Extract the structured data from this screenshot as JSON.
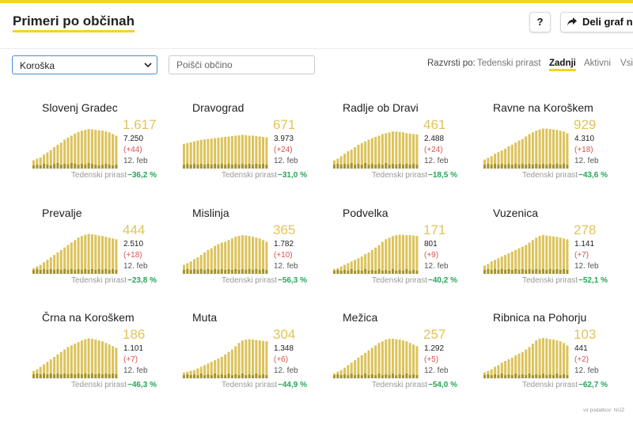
{
  "header": {
    "title": "Primeri po občinah",
    "help_label": "?",
    "share_label": "Deli graf na"
  },
  "filters": {
    "region_selected": "Koroška",
    "search_placeholder": "Poišči občino",
    "sort_label": "Razvrsti po:",
    "sort_options": [
      "Tedenski prirast",
      "Zadnji",
      "Aktivni",
      "Vsi"
    ],
    "sort_active": "Zadnji"
  },
  "growth_label": "Tedenski prirast",
  "colors": {
    "accent": "#f5d422",
    "bar_light": "#dcc35a",
    "bar_dark": "#a39330",
    "growth_text": "#26a65b",
    "delta_text": "#d9534f"
  },
  "municipalities": [
    {
      "name": "Slovenj Gradec",
      "active": "1.617",
      "total": "7.250",
      "delta": "(+44)",
      "date": "12. feb",
      "growth": "−36,2 %",
      "series": [
        20,
        24,
        27,
        34,
        39,
        45,
        52,
        58,
        63,
        70,
        75,
        80,
        85,
        89,
        92,
        94,
        96,
        95,
        94,
        93,
        92,
        90,
        88,
        84,
        80
      ],
      "dark": [
        4,
        5,
        4,
        6,
        5,
        4,
        6,
        7,
        5,
        6,
        5,
        7,
        6,
        5,
        6,
        5,
        7,
        6,
        5,
        4,
        5,
        6,
        5,
        4,
        5
      ]
    },
    {
      "name": "Dravograd",
      "active": "671",
      "total": "3.973",
      "delta": "(+24)",
      "date": "12. feb",
      "growth": "−31,0 %",
      "series": [
        60,
        62,
        64,
        66,
        68,
        70,
        71,
        72,
        73,
        74,
        75,
        76,
        77,
        78,
        79,
        80,
        81,
        82,
        81,
        80,
        80,
        79,
        78,
        77,
        76
      ],
      "dark": [
        5,
        6,
        5,
        6,
        5,
        6,
        5,
        6,
        5,
        6,
        5,
        6,
        5,
        6,
        5,
        6,
        5,
        6,
        5,
        6,
        5,
        6,
        5,
        6,
        5
      ]
    },
    {
      "name": "Radlje ob Dravi",
      "active": "461",
      "total": "2.488",
      "delta": "(+24)",
      "date": "12. feb",
      "growth": "−18,5 %",
      "series": [
        20,
        24,
        30,
        36,
        42,
        46,
        52,
        58,
        62,
        66,
        70,
        74,
        77,
        80,
        84,
        86,
        88,
        90,
        90,
        89,
        88,
        86,
        85,
        84,
        83
      ],
      "dark": [
        5,
        6,
        5,
        6,
        5,
        7,
        5,
        6,
        5,
        7,
        5,
        6,
        5,
        6,
        5,
        7,
        5,
        6,
        5,
        6,
        5,
        6,
        5,
        6,
        5
      ]
    },
    {
      "name": "Ravne na Koroškem",
      "active": "929",
      "total": "4.310",
      "delta": "(+18)",
      "date": "12. feb",
      "growth": "−43,6 %",
      "series": [
        22,
        26,
        30,
        36,
        40,
        44,
        48,
        54,
        58,
        63,
        68,
        72,
        78,
        84,
        88,
        92,
        95,
        97,
        97,
        96,
        95,
        94,
        92,
        90,
        86
      ],
      "dark": [
        5,
        6,
        5,
        6,
        5,
        6,
        5,
        6,
        5,
        6,
        5,
        6,
        5,
        6,
        5,
        6,
        5,
        6,
        5,
        6,
        5,
        6,
        5,
        6,
        5
      ]
    },
    {
      "name": "Prevalje",
      "active": "444",
      "total": "2.510",
      "delta": "(+18)",
      "date": "12. feb",
      "growth": "−23,8 %",
      "series": [
        14,
        18,
        22,
        28,
        34,
        40,
        46,
        52,
        58,
        64,
        70,
        76,
        82,
        88,
        92,
        95,
        97,
        96,
        95,
        93,
        92,
        90,
        88,
        86,
        84
      ],
      "dark": [
        5,
        6,
        5,
        6,
        5,
        6,
        5,
        6,
        5,
        6,
        5,
        6,
        5,
        6,
        5,
        6,
        5,
        6,
        5,
        6,
        5,
        6,
        5,
        6,
        5
      ]
    },
    {
      "name": "Mislinja",
      "active": "365",
      "total": "1.782",
      "delta": "(+10)",
      "date": "12. feb",
      "growth": "−56,3 %",
      "series": [
        22,
        26,
        30,
        36,
        40,
        46,
        52,
        58,
        62,
        68,
        72,
        76,
        78,
        82,
        86,
        90,
        92,
        94,
        93,
        92,
        90,
        88,
        86,
        82,
        78
      ],
      "dark": [
        5,
        6,
        5,
        6,
        5,
        6,
        5,
        6,
        5,
        6,
        5,
        6,
        5,
        6,
        5,
        6,
        5,
        6,
        5,
        6,
        5,
        6,
        5,
        6,
        5
      ]
    },
    {
      "name": "Podvelka",
      "active": "171",
      "total": "801",
      "delta": "(+9)",
      "date": "12. feb",
      "growth": "−40,2 %",
      "series": [
        12,
        14,
        18,
        22,
        26,
        30,
        34,
        38,
        42,
        48,
        52,
        58,
        64,
        70,
        78,
        84,
        88,
        92,
        94,
        95,
        95,
        94,
        94,
        93,
        92
      ],
      "dark": [
        4,
        5,
        4,
        5,
        4,
        6,
        4,
        5,
        4,
        6,
        4,
        5,
        4,
        6,
        4,
        5,
        4,
        6,
        4,
        5,
        4,
        6,
        4,
        5,
        4
      ]
    },
    {
      "name": "Vuzenica",
      "active": "278",
      "total": "1.141",
      "delta": "(+7)",
      "date": "12. feb",
      "growth": "−52,1 %",
      "series": [
        20,
        24,
        30,
        34,
        38,
        42,
        46,
        50,
        54,
        58,
        62,
        66,
        70,
        76,
        82,
        88,
        92,
        94,
        93,
        92,
        91,
        90,
        88,
        86,
        84
      ],
      "dark": [
        5,
        6,
        5,
        6,
        5,
        6,
        5,
        6,
        5,
        6,
        5,
        6,
        5,
        6,
        5,
        6,
        5,
        6,
        5,
        6,
        5,
        6,
        5,
        6,
        5
      ]
    },
    {
      "name": "Črna na Koroškem",
      "active": "186",
      "total": "1.101",
      "delta": "(+7)",
      "date": "12. feb",
      "growth": "−46,3 %",
      "series": [
        18,
        22,
        28,
        34,
        40,
        46,
        52,
        58,
        64,
        70,
        76,
        80,
        84,
        88,
        92,
        95,
        97,
        96,
        94,
        92,
        90,
        86,
        82,
        78,
        74
      ],
      "dark": [
        5,
        6,
        5,
        6,
        5,
        6,
        5,
        6,
        5,
        6,
        5,
        6,
        5,
        6,
        5,
        6,
        5,
        6,
        5,
        6,
        5,
        6,
        5,
        6,
        5
      ]
    },
    {
      "name": "Muta",
      "active": "304",
      "total": "1.348",
      "delta": "(+6)",
      "date": "12. feb",
      "growth": "−44,9 %",
      "series": [
        14,
        16,
        18,
        20,
        24,
        28,
        32,
        36,
        40,
        44,
        48,
        52,
        58,
        64,
        70,
        78,
        86,
        92,
        94,
        95,
        94,
        93,
        92,
        91,
        90
      ],
      "dark": [
        4,
        5,
        4,
        5,
        4,
        6,
        4,
        5,
        4,
        6,
        4,
        5,
        4,
        6,
        4,
        5,
        4,
        6,
        4,
        5,
        4,
        6,
        4,
        5,
        4
      ]
    },
    {
      "name": "Mežica",
      "active": "257",
      "total": "1.292",
      "delta": "(+5)",
      "date": "12. feb",
      "growth": "−54,0 %",
      "series": [
        12,
        16,
        20,
        26,
        32,
        38,
        44,
        50,
        56,
        62,
        68,
        74,
        80,
        86,
        90,
        94,
        96,
        96,
        95,
        94,
        92,
        90,
        86,
        82,
        78
      ],
      "dark": [
        4,
        5,
        4,
        5,
        4,
        6,
        4,
        5,
        4,
        6,
        4,
        5,
        4,
        6,
        4,
        5,
        4,
        6,
        4,
        5,
        4,
        6,
        4,
        5,
        4
      ]
    },
    {
      "name": "Ribnica na Pohorju",
      "active": "103",
      "total": "441",
      "delta": "(+2)",
      "date": "12. feb",
      "growth": "−62,7 %",
      "series": [
        14,
        18,
        22,
        28,
        32,
        38,
        42,
        46,
        50,
        56,
        60,
        64,
        70,
        76,
        84,
        92,
        96,
        98,
        97,
        95,
        94,
        92,
        90,
        86,
        80
      ],
      "dark": [
        4,
        5,
        4,
        5,
        4,
        6,
        4,
        5,
        4,
        6,
        4,
        5,
        4,
        6,
        4,
        5,
        4,
        6,
        4,
        5,
        4,
        6,
        4,
        5,
        4
      ]
    }
  ],
  "footer": {
    "source": "vir podatkov: NIJZ"
  }
}
